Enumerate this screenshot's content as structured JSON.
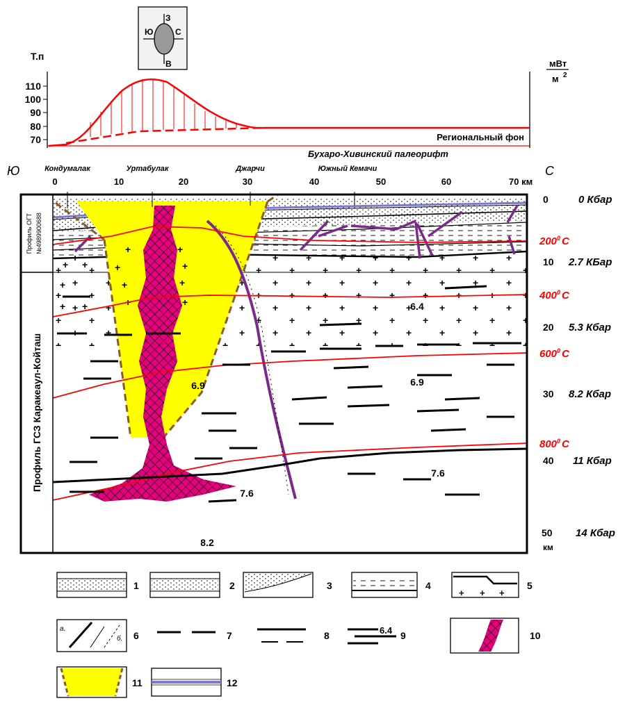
{
  "compass": {
    "north": "С",
    "south": "Ю",
    "west": "З",
    "east": "В"
  },
  "heat_flow": {
    "y_label": "Т.п",
    "y_ticks": [
      "110",
      "100",
      "90",
      "80",
      "70"
    ],
    "right_unit_top": "мВт",
    "right_unit_bottom": "м",
    "right_unit_exp": "2",
    "background_label": "Региональный фон",
    "rift_label": "Бухаро-Хивинский палеорифт",
    "curve_color": "#ff0000"
  },
  "profile": {
    "south_letter": "Ю",
    "north_letter": "С",
    "km_ticks": [
      "0",
      "10",
      "20",
      "30",
      "40",
      "50",
      "60",
      "70 км"
    ],
    "wells": [
      "Кондумалак",
      "Уртабулак",
      "Джарчи",
      "Южный Кемачи"
    ],
    "section_label_top_line1": "Профиль ОГТ",
    "section_label_top_line2": "№4989900688",
    "section_label_main": "Профиль ГСЗ Каракеаул-Койташ",
    "velocities": [
      "6.4",
      "6.9",
      "6.9",
      "7.6",
      "7.6",
      "8.2"
    ],
    "depth_ticks": [
      "0",
      "10",
      "20",
      "30",
      "40",
      "50"
    ],
    "depth_unit": "км",
    "pressures": [
      "0 Кбар",
      "2.7 КБар",
      "5.3 Кбар",
      "8.2 Кбар",
      "11 Кбар",
      "14 Кбар"
    ],
    "isotherms": [
      "200",
      "400",
      "600",
      "800"
    ],
    "isotherm_unit": "C",
    "degree_sign": "0",
    "isotherm_color": "#ff0000",
    "wedge_color": "#ffff00",
    "intrusion_color": "#e6007e",
    "fault_color": "#7b2a8c",
    "reflector_color": "#7a7ad6"
  },
  "legend": {
    "items": [
      "1",
      "2",
      "3",
      "4",
      "5",
      "6",
      "7",
      "8",
      "9",
      "10",
      "11",
      "12"
    ],
    "item6_a": "а.",
    "item6_b": "б.",
    "item9_value": "6.4"
  }
}
